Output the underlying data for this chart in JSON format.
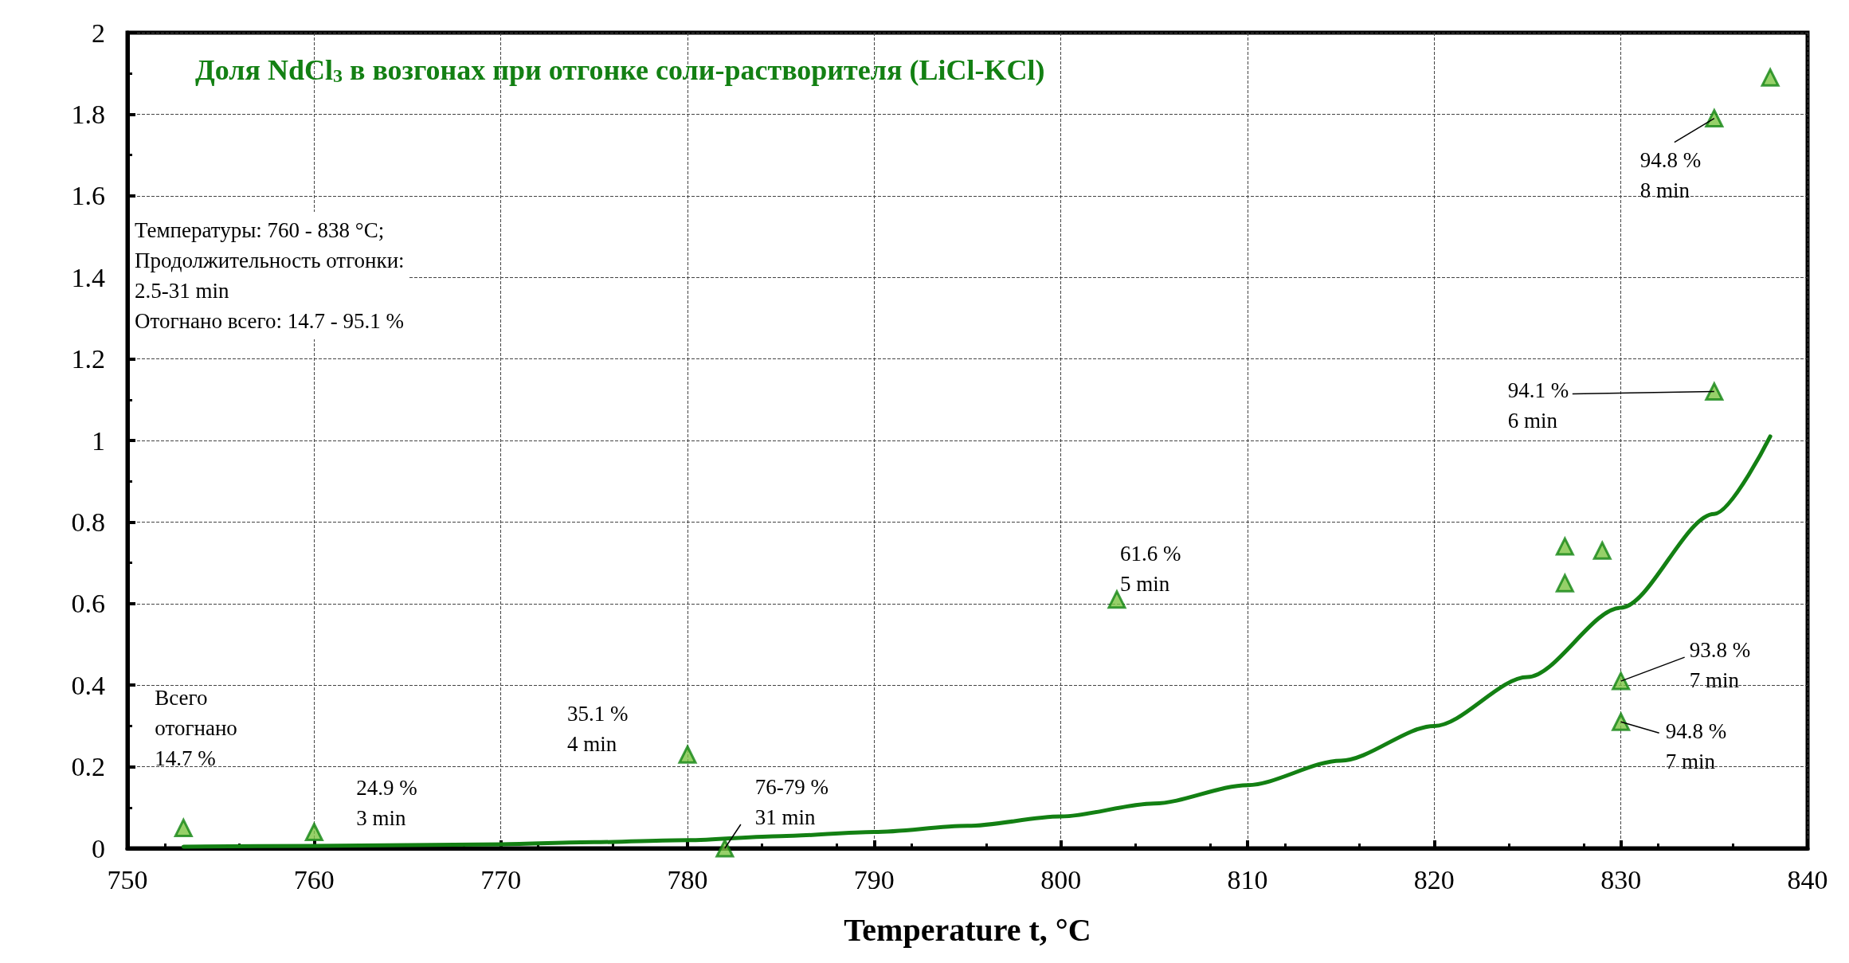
{
  "chart_data": {
    "type": "scatter",
    "title": "Доля NdCl$_{3}$ в возгонах при отгонке соли-растворителя (LiCl-KCl)",
    "xlabel": "Temperature t, °C",
    "xlim": [
      750,
      840
    ],
    "xticks": [
      750,
      760,
      770,
      780,
      790,
      800,
      810,
      820,
      830,
      840
    ],
    "ylim": [
      0,
      2
    ],
    "yticks": [
      0,
      0.2,
      0.4,
      0.6,
      0.8,
      1,
      1.2,
      1.4,
      1.6,
      1.8,
      2
    ],
    "grid": true,
    "marker": "triangle",
    "series": [
      {
        "color": "#7cc444",
        "x": [
          753,
          760,
          780,
          782,
          803,
          827,
          827,
          829,
          830,
          830,
          835,
          835,
          838
        ],
        "values": [
          0.05,
          0.04,
          0.23,
          0.0,
          0.61,
          0.74,
          0.65,
          0.73,
          0.41,
          0.31,
          1.12,
          1.79,
          1.89
        ]
      },
      {
        "type": "line",
        "color": "#138013",
        "marker": "none",
        "x": [
          753,
          760,
          770,
          775,
          780,
          785,
          790,
          795,
          800,
          805,
          810,
          815,
          820,
          825,
          830,
          835,
          838
        ],
        "values": [
          0.004,
          0.006,
          0.01,
          0.015,
          0.02,
          0.03,
          0.04,
          0.055,
          0.078,
          0.11,
          0.155,
          0.215,
          0.3,
          0.42,
          0.59,
          0.82,
          1.01
        ]
      }
    ],
    "annotations": [
      "Температуры: 760 - 838 °C;\nПродолжительность отгонки:\n2.5-31 min\nОтогнано всего: 14.7 - 95.1 %",
      {
        "text": "Всего\nотогнано\n14.7 %",
        "x": 753,
        "y": 0.05
      },
      {
        "text": "24.9 %\n3 min",
        "x": 760,
        "y": 0.04
      },
      {
        "text": "35.1 %\n4 min",
        "x": 780,
        "y": 0.23
      },
      {
        "text": "76-79 %\n31 min",
        "x": 782,
        "y": 0.0
      },
      {
        "text": "61.6 %\n5 min",
        "x": 803,
        "y": 0.61
      },
      {
        "text": "93.8 %\n7 min",
        "x": 830,
        "y": 0.41
      },
      {
        "text": "94.8 %\n7 min",
        "x": 830,
        "y": 0.31
      },
      {
        "text": "94.1 %\n6 min",
        "x": 835,
        "y": 1.12
      },
      {
        "text": "94.8 %\n8 min",
        "x": 835,
        "y": 1.79
      }
    ]
  }
}
